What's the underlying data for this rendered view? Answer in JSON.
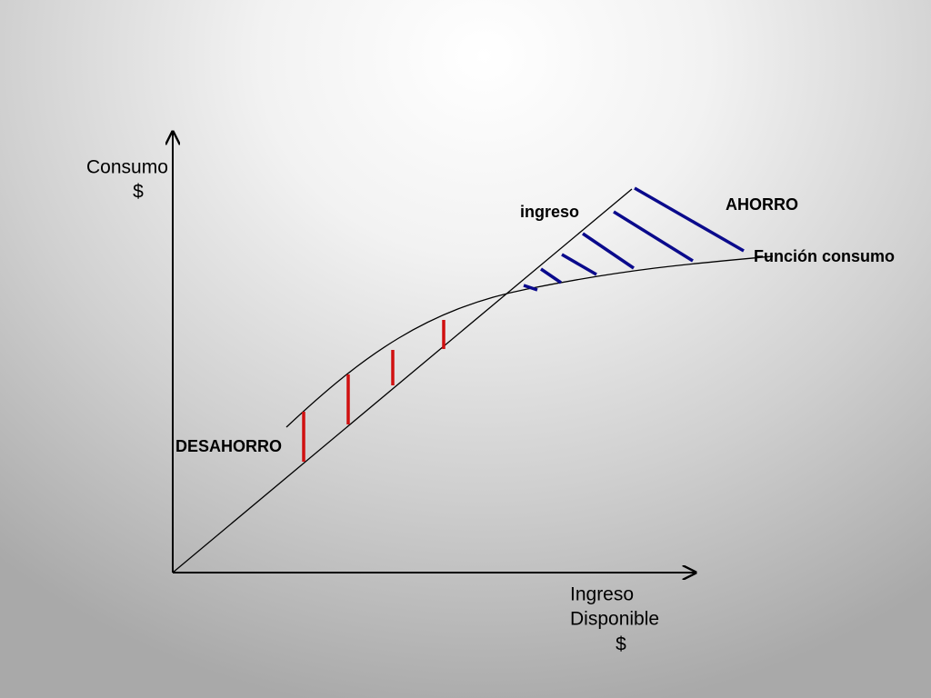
{
  "y_axis_label": {
    "line1": "Consumo",
    "line2": "$"
  },
  "x_axis_label": {
    "line1": "Ingreso",
    "line2": "Disponible",
    "line3": "$"
  },
  "labels": {
    "ingreso": "ingreso",
    "ahorro": "AHORRO",
    "funcion_consumo": "Función consumo",
    "desahorro": "DESAHORRO"
  }
}
